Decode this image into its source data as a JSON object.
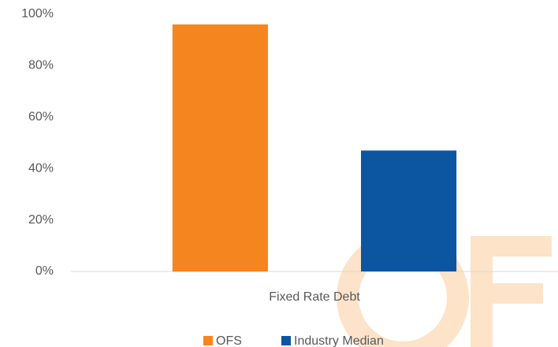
{
  "chart_data": {
    "type": "bar",
    "categories": [
      "Fixed Rate Debt"
    ],
    "series": [
      {
        "name": "OFS",
        "color": "#f5861f",
        "values": [
          96
        ]
      },
      {
        "name": "Industry Median",
        "color": "#0c55a0",
        "values": [
          47
        ]
      }
    ],
    "ylim": [
      0,
      100
    ],
    "yticks": [
      {
        "value": 0,
        "label": "0%"
      },
      {
        "value": 20,
        "label": "20%"
      },
      {
        "value": 40,
        "label": "40%"
      },
      {
        "value": 60,
        "label": "60%"
      },
      {
        "value": 80,
        "label": "80%"
      },
      {
        "value": 100,
        "label": "100%"
      }
    ],
    "grid": false,
    "legend": "bottom"
  }
}
